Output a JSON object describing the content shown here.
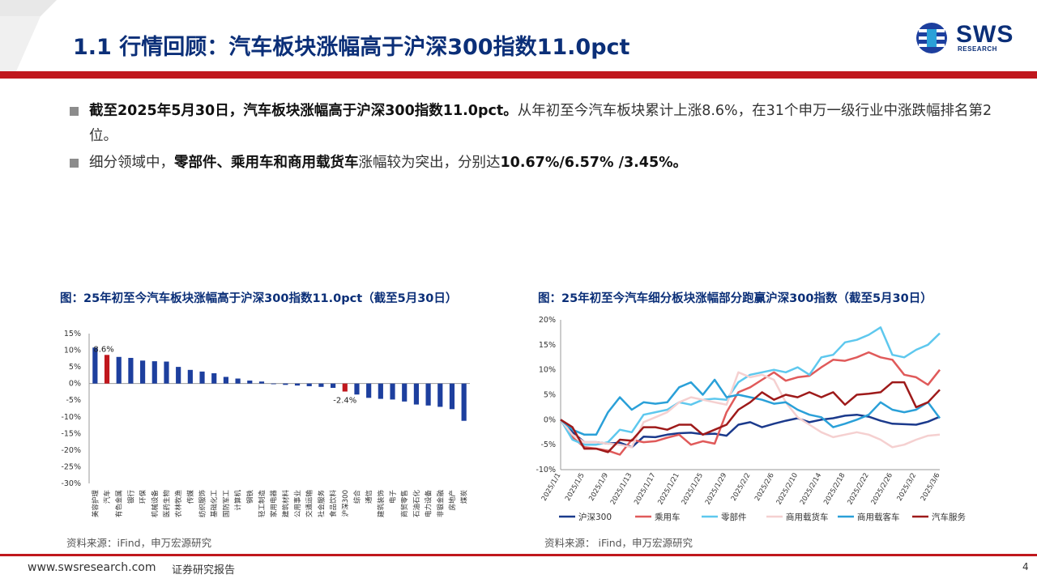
{
  "header": {
    "title": "1.1 行情回顾：汽车板块涨幅高于沪深300指数11.0pct",
    "logo_text": "SWS",
    "logo_sub": "RESEARCH",
    "accent_color": "#c0171d",
    "title_color": "#0b2f78"
  },
  "bullets": [
    {
      "bold": "截至2025年5月30日，汽车板块涨幅高于沪深300指数11.0pct。",
      "text": "从年初至今汽车板块累计上涨8.6%，在31个申万一级行业中涨跌幅排名第2位。"
    },
    {
      "pre": "细分领域中，",
      "bold": "零部件、乘用车和商用载货车",
      "mid": "涨幅较为突出，分别达",
      "bold2": "10.67%/6.57% /3.45%。"
    }
  ],
  "chart1": {
    "title": "图：25年初至今汽车板块涨幅高于沪深300指数11.0pct（截至5月30日）",
    "source": "资料来源：iFind，申万宏源研究"
  },
  "chart2": {
    "title": "图：25年初至今汽车细分板块涨幅部分跑赢沪深300指数（截至5月30日）",
    "source": "资料来源： iFind，申万宏源研究"
  },
  "chart_data": [
    {
      "type": "bar",
      "categories": [
        "美容护理",
        "汽车",
        "有色金属",
        "银行",
        "环保",
        "机械设备",
        "医药生物",
        "农林牧渔",
        "传媒",
        "纺织服饰",
        "基础化工",
        "国防军工",
        "计算机",
        "钢铁",
        "轻工制造",
        "家用电器",
        "建筑材料",
        "公用事业",
        "交通运输",
        "社会服务",
        "食品饮料",
        "沪深300",
        "综合",
        "通信",
        "建筑装饰",
        "电子",
        "商贸零售",
        "石油石化",
        "电力设备",
        "非银金融",
        "房地产",
        "煤炭"
      ],
      "values": [
        10.8,
        8.6,
        8.0,
        7.7,
        6.9,
        6.7,
        6.6,
        5.0,
        4.1,
        3.6,
        3.1,
        2.0,
        1.5,
        0.9,
        0.6,
        -0.2,
        -0.4,
        -0.6,
        -0.8,
        -1.0,
        -1.3,
        -2.4,
        -3.3,
        -4.3,
        -4.6,
        -4.8,
        -5.4,
        -6.3,
        -6.6,
        -7.0,
        -7.7,
        -11.2
      ],
      "highlight": {
        "汽车": "#c0171d",
        "沪深300": "#c0171d"
      },
      "bar_color": "#1d3f9e",
      "data_labels": [
        {
          "category": "汽车",
          "text": "8.6%"
        },
        {
          "category": "沪深300",
          "text": "-2.4%"
        }
      ],
      "ylim": [
        -30,
        15
      ],
      "yticks": [
        "15%",
        "10%",
        "5%",
        "0%",
        "-5%",
        "-10%",
        "-15%",
        "-20%",
        "-25%",
        "-30%"
      ],
      "ytick_values": [
        15,
        10,
        5,
        0,
        -5,
        -10,
        -15,
        -20,
        -25,
        -30
      ]
    },
    {
      "type": "line",
      "x": [
        "2025/1/1",
        "2025/1/3",
        "2025/1/5",
        "2025/1/7",
        "2025/1/9",
        "2025/1/11",
        "2025/1/13",
        "2025/1/15",
        "2025/1/17",
        "2025/1/19",
        "2025/1/21",
        "2025/1/23",
        "2025/1/25",
        "2025/1/27",
        "2025/1/29",
        "2025/1/31",
        "2025/2/2",
        "2025/2/4",
        "2025/2/6",
        "2025/2/8",
        "2025/2/10",
        "2025/2/12",
        "2025/2/14",
        "2025/2/16",
        "2025/2/18",
        "2025/2/20",
        "2025/2/22",
        "2025/2/24",
        "2025/2/26",
        "2025/2/28",
        "2025/3/2",
        "2025/3/4",
        "2025/3/6"
      ],
      "xtick_labels": [
        "2025/1/1",
        "2025/1/3",
        "2025/1/5",
        "2025/1/7",
        "2025/1/9",
        "2025/1/11",
        "2025/1/13",
        "2025/1/15",
        "2025/1/17",
        "2025/1/19",
        "2025/1/21",
        "2025/1/23",
        "2025/1/25",
        "2025/1/27",
        "2025/1/29",
        "2025/1/31",
        "2025/2/2",
        "2025/2/4",
        "2025/2/6",
        "2025/2/8",
        "2025/2/10",
        "2025/2/12",
        "2025/2/14",
        "2025/2/16",
        "2025/2/18",
        "2025/2/20",
        "2025/2/22",
        "2025/2/24",
        "2025/2/26",
        "2025/2/28",
        "2025/3/2",
        "2025/3/4",
        "2025/3/6"
      ],
      "xtick_shown": [
        "2025/1/1",
        "2025/1/3",
        "2025/1/5",
        "2025/1/7",
        "2025/1/9",
        "2025/1/11",
        "2025/1/13",
        "2025/1/15",
        "2025/1/17",
        "2025/1/19",
        "2025/1/21",
        "2025/1/23",
        "2025/1/25",
        "2025/1/27",
        "2025/1/29",
        "2025/1/31",
        "2025/2/2",
        "2025/2/4",
        "2025/2/6",
        "2025/2/8",
        "2025/2/10",
        "2025/2/12",
        "2025/2/14",
        "2025/2/16",
        "2025/2/18",
        "2025/2/20",
        "2025/2/22",
        "2025/2/24",
        "2025/2/26",
        "2025/2/28",
        "2025/3/2",
        "2025/3/4",
        "2025/3/6"
      ],
      "ylim": [
        -10,
        20
      ],
      "yticks": [
        "20%",
        "15%",
        "10%",
        "5%",
        "0%",
        "-5%",
        "-10%"
      ],
      "ytick_values": [
        20,
        15,
        10,
        5,
        0,
        -5,
        -10
      ],
      "series": [
        {
          "name": "沪深300",
          "color": "#1b3a8c",
          "values": [
            0,
            -2.5,
            -4.5,
            -4.5,
            -4.8,
            -4.6,
            -5.5,
            -3.4,
            -3.5,
            -3.0,
            -2.7,
            -2.6,
            -2.9,
            -2.8,
            -3.2,
            -1.0,
            -0.5,
            -1.5,
            -0.8,
            -0.2,
            0.3,
            -0.5,
            0.0,
            0.3,
            0.8,
            1.0,
            0.6,
            -0.2,
            -0.8,
            -0.9,
            -1.0,
            -0.4,
            0.6
          ]
        },
        {
          "name": "乘用车",
          "color": "#e05a5a",
          "values": [
            0,
            -3.5,
            -5.5,
            -5.8,
            -6.2,
            -7.0,
            -4.0,
            -4.5,
            -4.3,
            -3.6,
            -3.0,
            -5.0,
            -4.3,
            -4.8,
            1.5,
            5.5,
            6.5,
            8.0,
            9.5,
            7.8,
            8.5,
            8.8,
            10.5,
            12.0,
            11.8,
            12.5,
            13.5,
            12.5,
            12.0,
            9.0,
            8.5,
            7.0,
            10.0
          ]
        },
        {
          "name": "零部件",
          "color": "#5ec8ee",
          "values": [
            0,
            -4.0,
            -5.0,
            -5.0,
            -4.5,
            -2.0,
            -2.5,
            1.0,
            1.5,
            2.0,
            3.5,
            3.0,
            4.0,
            4.2,
            4.0,
            7.5,
            9.0,
            9.5,
            10.0,
            9.5,
            10.5,
            9.0,
            12.5,
            13.0,
            15.5,
            16.0,
            17.0,
            18.5,
            13.0,
            12.5,
            14.0,
            15.0,
            17.3
          ]
        },
        {
          "name": "商用载货车",
          "color": "#f5d0d0",
          "values": [
            0,
            -3.0,
            -4.5,
            -4.5,
            -4.8,
            -5.0,
            -5.5,
            -0.5,
            0.5,
            1.5,
            3.5,
            4.5,
            4.0,
            3.5,
            3.0,
            9.5,
            8.5,
            9.0,
            8.0,
            3.5,
            0.5,
            -1.0,
            -2.5,
            -3.5,
            -3.0,
            -2.5,
            -3.0,
            -4.0,
            -5.5,
            -5.0,
            -4.0,
            -3.2,
            -3.0
          ]
        },
        {
          "name": "商用载客车",
          "color": "#2aa0d8",
          "values": [
            0,
            -2.0,
            -3.0,
            -3.0,
            1.5,
            4.5,
            2.0,
            3.5,
            3.2,
            3.5,
            6.5,
            7.5,
            5.0,
            8.0,
            4.5,
            5.0,
            4.5,
            4.0,
            3.2,
            3.5,
            2.0,
            1.0,
            0.5,
            -1.5,
            -0.8,
            0.0,
            1.0,
            3.5,
            2.0,
            1.5,
            2.0,
            3.5,
            0.3
          ]
        },
        {
          "name": "汽车服务",
          "color": "#9e1a1a",
          "values": [
            0,
            -1.5,
            -5.8,
            -5.8,
            -6.5,
            -4.0,
            -4.2,
            -1.5,
            -1.5,
            -2.0,
            -1.0,
            -1.0,
            -3.0,
            -2.0,
            -1.0,
            2.0,
            3.5,
            5.5,
            4.0,
            5.0,
            4.5,
            5.5,
            4.5,
            5.5,
            3.0,
            5.0,
            5.2,
            5.5,
            7.5,
            7.5,
            2.5,
            3.5,
            6.0
          ]
        }
      ]
    }
  ],
  "footer": {
    "url": "www.swsresearch.com",
    "label": "证券研究报告",
    "page": "4"
  }
}
